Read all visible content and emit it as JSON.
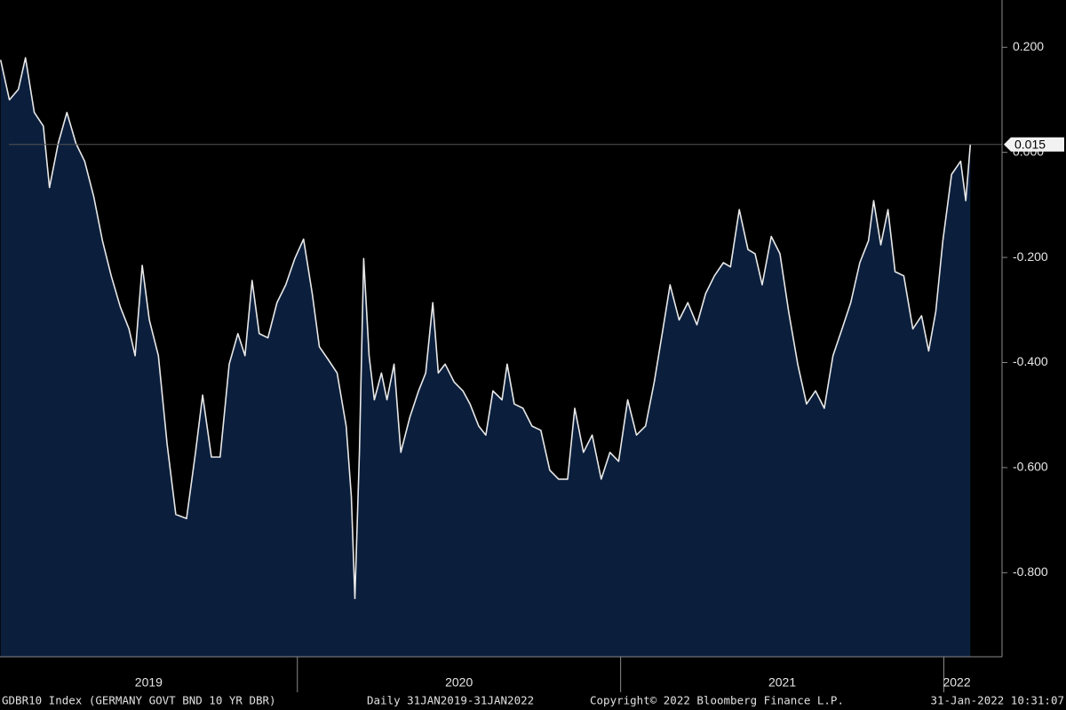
{
  "chart_data": {
    "type": "area",
    "series": [
      {
        "name": "GDBR10 Index",
        "color": "#e8e8e8",
        "fill": "#0b1f3d",
        "x": [
          2019.082,
          2019.109,
          2019.137,
          2019.159,
          2019.186,
          2019.214,
          2019.233,
          2019.26,
          2019.287,
          2019.315,
          2019.342,
          2019.37,
          2019.397,
          2019.424,
          2019.452,
          2019.479,
          2019.498,
          2019.52,
          2019.542,
          2019.57,
          2019.597,
          2019.624,
          2019.657,
          2019.685,
          2019.707,
          2019.734,
          2019.761,
          2019.789,
          2019.816,
          2019.838,
          2019.86,
          2019.882,
          2019.909,
          2019.937,
          2019.964,
          2019.992,
          2020.019,
          2020.046,
          2020.068,
          2020.096,
          2020.123,
          2020.151,
          2020.167,
          2020.178,
          2020.192,
          2020.205,
          2020.222,
          2020.238,
          2020.26,
          2020.277,
          2020.299,
          2020.32,
          2020.348,
          2020.375,
          2020.397,
          2020.419,
          2020.436,
          2020.457,
          2020.485,
          2020.512,
          2020.534,
          2020.561,
          2020.583,
          2020.605,
          2020.633,
          2020.649,
          2020.671,
          2020.698,
          2020.726,
          2020.753,
          2020.781,
          2020.808,
          2020.836,
          2020.858,
          2020.885,
          2020.912,
          2020.94,
          2020.967,
          2020.994,
          2021.022,
          2021.049,
          2021.077,
          2021.104,
          2021.131,
          2021.153,
          2021.181,
          2021.208,
          2021.236,
          2021.263,
          2021.29,
          2021.318,
          2021.34,
          2021.367,
          2021.394,
          2021.416,
          2021.438,
          2021.466,
          2021.493,
          2021.52,
          2021.548,
          2021.575,
          2021.603,
          2021.63,
          2021.657,
          2021.685,
          2021.712,
          2021.74,
          2021.767,
          2021.783,
          2021.805,
          2021.827,
          2021.849,
          2021.876,
          2021.904,
          2021.931,
          2021.953,
          2021.975,
          2021.997,
          2022.024,
          2022.052,
          2022.068,
          2022.082
        ],
        "values": [
          0.176,
          0.1,
          0.12,
          0.18,
          0.076,
          0.05,
          -0.067,
          0.017,
          0.076,
          0.017,
          -0.017,
          -0.084,
          -0.168,
          -0.235,
          -0.294,
          -0.336,
          -0.387,
          -0.215,
          -0.319,
          -0.387,
          -0.555,
          -0.689,
          -0.697,
          -0.571,
          -0.462,
          -0.58,
          -0.58,
          -0.403,
          -0.345,
          -0.387,
          -0.244,
          -0.345,
          -0.353,
          -0.286,
          -0.252,
          -0.202,
          -0.165,
          -0.269,
          -0.37,
          -0.395,
          -0.42,
          -0.521,
          -0.655,
          -0.849,
          -0.571,
          -0.202,
          -0.387,
          -0.471,
          -0.42,
          -0.471,
          -0.403,
          -0.571,
          -0.504,
          -0.454,
          -0.42,
          -0.286,
          -0.42,
          -0.403,
          -0.437,
          -0.454,
          -0.479,
          -0.521,
          -0.538,
          -0.454,
          -0.471,
          -0.403,
          -0.479,
          -0.487,
          -0.521,
          -0.529,
          -0.605,
          -0.622,
          -0.622,
          -0.487,
          -0.571,
          -0.538,
          -0.622,
          -0.571,
          -0.588,
          -0.471,
          -0.538,
          -0.521,
          -0.437,
          -0.336,
          -0.252,
          -0.319,
          -0.286,
          -0.328,
          -0.269,
          -0.235,
          -0.21,
          -0.218,
          -0.109,
          -0.185,
          -0.193,
          -0.252,
          -0.16,
          -0.193,
          -0.303,
          -0.403,
          -0.479,
          -0.454,
          -0.487,
          -0.387,
          -0.336,
          -0.286,
          -0.21,
          -0.168,
          -0.092,
          -0.176,
          -0.109,
          -0.227,
          -0.235,
          -0.336,
          -0.311,
          -0.378,
          -0.303,
          -0.168,
          -0.042,
          -0.017,
          -0.092,
          0.015
        ]
      }
    ],
    "xlim": [
      2019.08,
      2022.18
    ],
    "xticks": [
      {
        "value": 2019.54,
        "label": "2019"
      },
      {
        "value": 2020.5,
        "label": "2020"
      },
      {
        "value": 2021.5,
        "label": "2021"
      },
      {
        "value": 2022.04,
        "label": "2022"
      }
    ],
    "x_boundaries": [
      2020,
      2021,
      2022
    ],
    "ylim": [
      -0.96,
      0.29
    ],
    "yticks": [
      {
        "value": 0.2,
        "label": "0.200"
      },
      {
        "value": 0,
        "label": "0.000"
      },
      {
        "value": -0.2,
        "label": "-0.200"
      },
      {
        "value": -0.4,
        "label": "-0.400"
      },
      {
        "value": -0.6,
        "label": "-0.600"
      },
      {
        "value": -0.8,
        "label": "-0.800"
      }
    ],
    "footer": {
      "ticker": "GDBR10 Index (GERMANY GOVT BND 10 YR DBR)",
      "range": "Daily 31JAN2019-31JAN2022",
      "copyright": "Copyright© 2022 Bloomberg Finance L.P.",
      "timestamp": "31-Jan-2022 10:31:07"
    }
  }
}
